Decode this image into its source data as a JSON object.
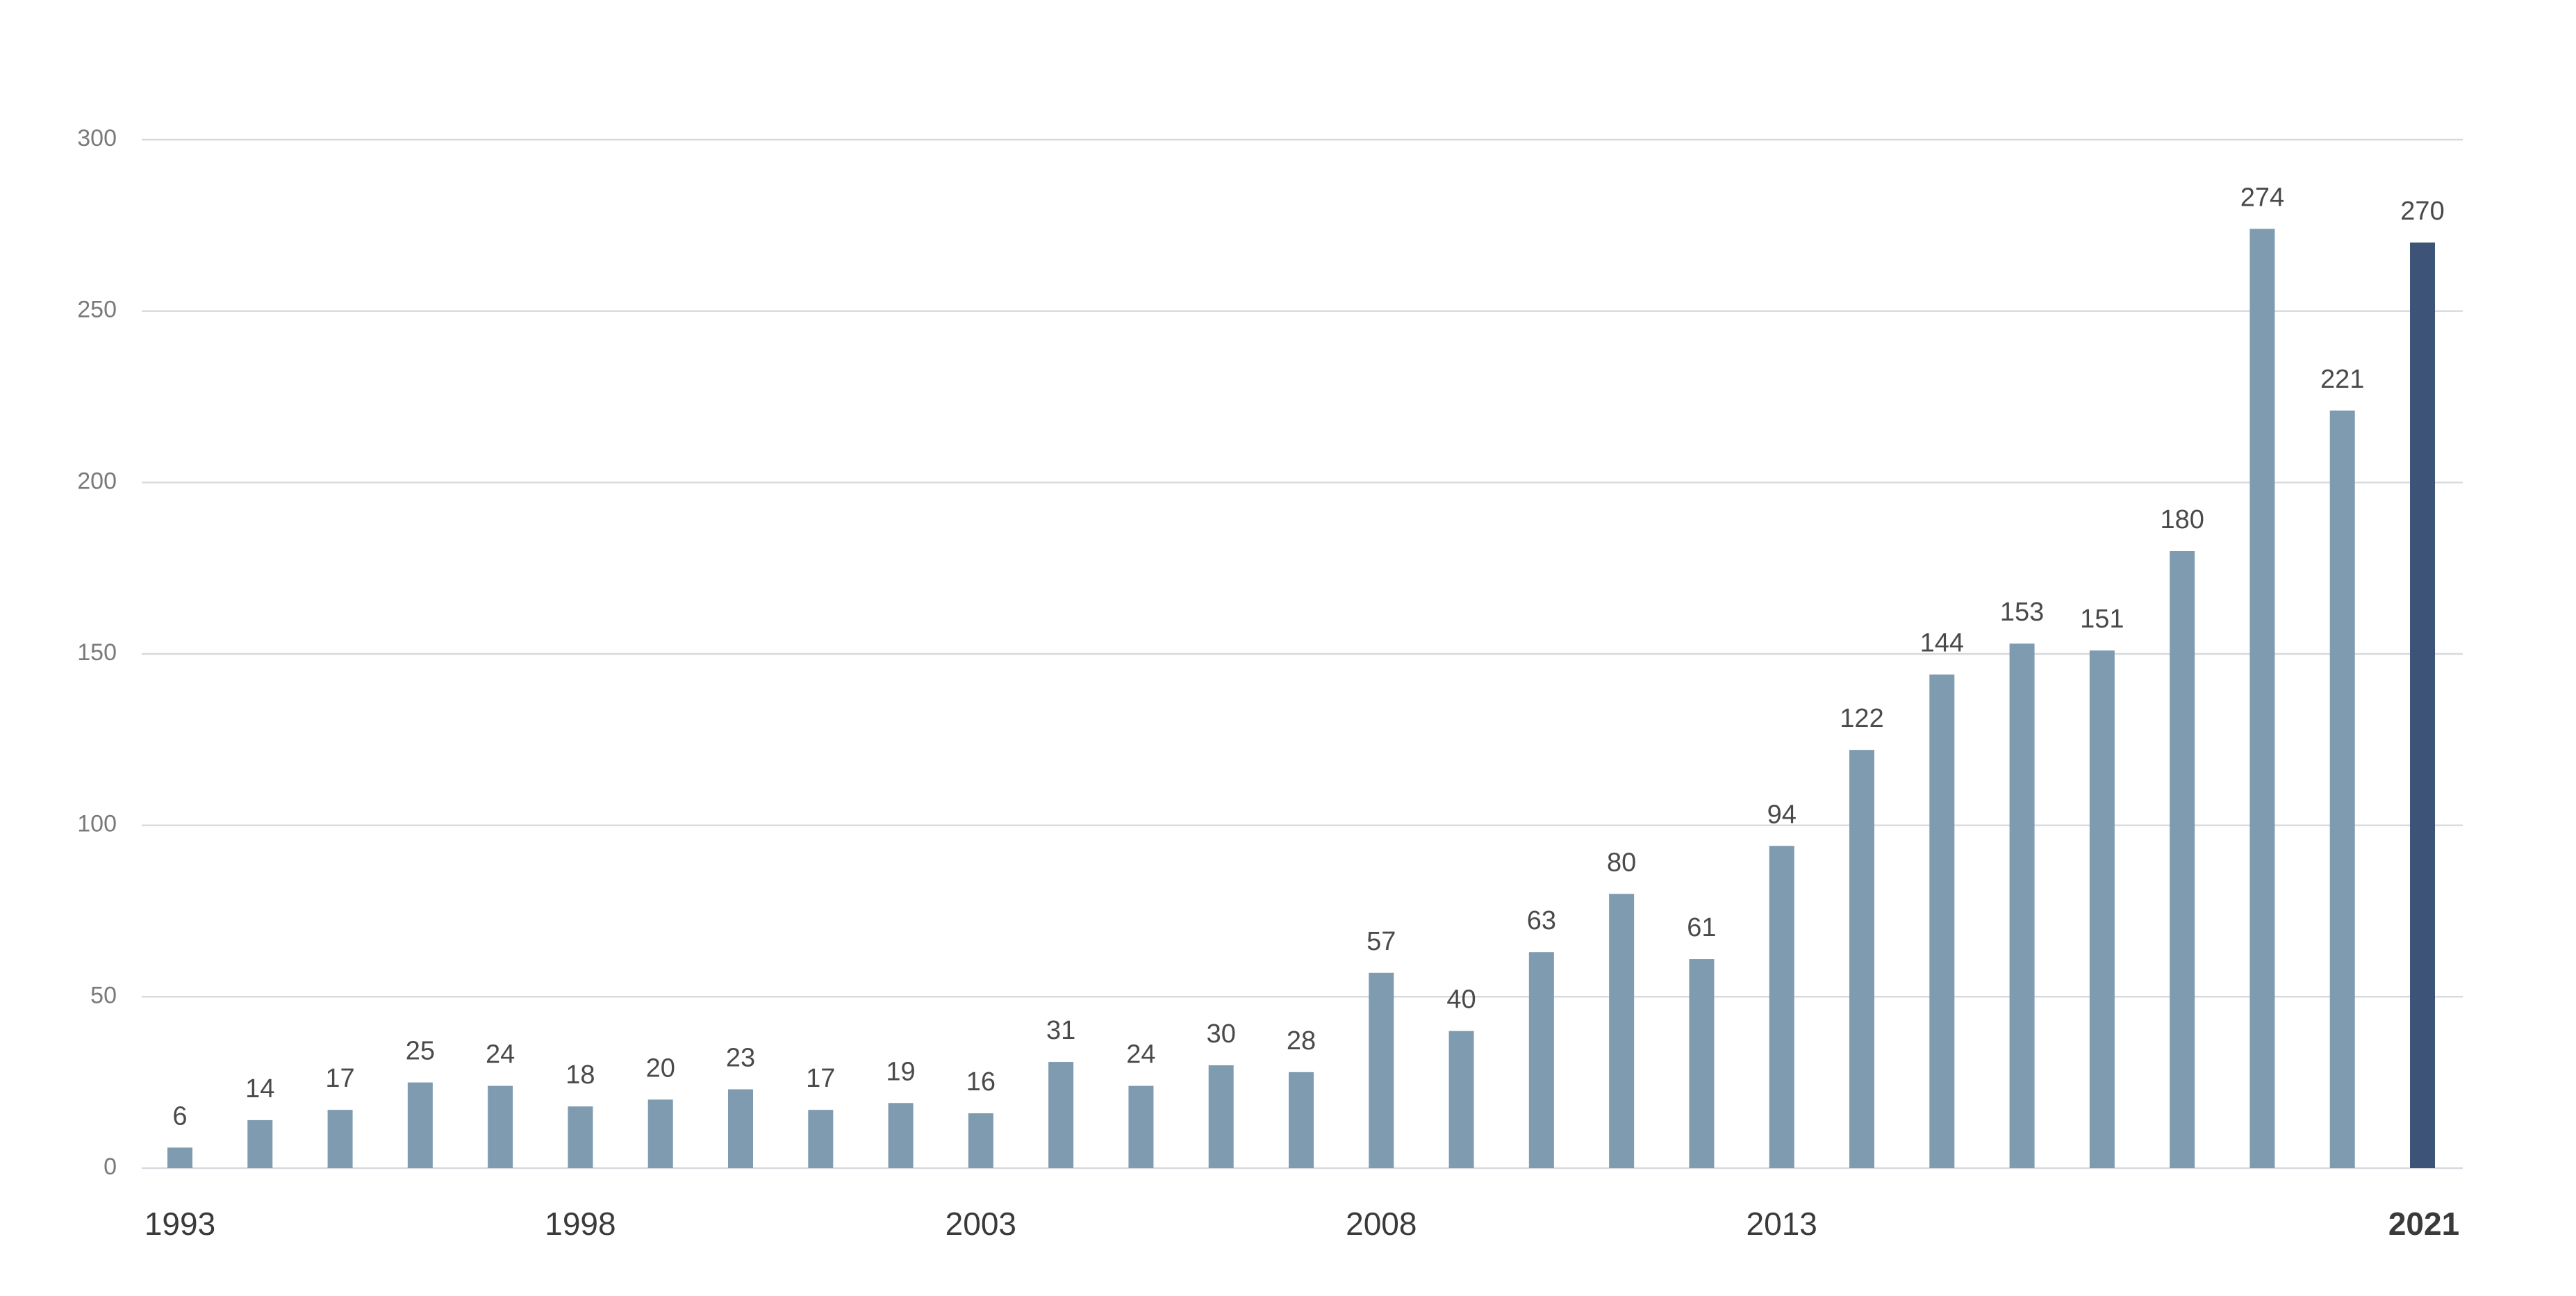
{
  "chart_data": {
    "type": "bar",
    "categories": [
      "1993",
      null,
      null,
      null,
      null,
      "1998",
      null,
      null,
      null,
      null,
      "2003",
      null,
      null,
      null,
      null,
      "2008",
      null,
      null,
      null,
      null,
      "2013",
      null,
      null,
      null,
      null,
      null,
      null,
      null,
      "2021"
    ],
    "values": [
      6,
      14,
      17,
      25,
      24,
      18,
      20,
      23,
      17,
      19,
      16,
      31,
      24,
      30,
      28,
      57,
      40,
      63,
      80,
      61,
      94,
      122,
      144,
      153,
      151,
      180,
      274,
      221,
      270
    ],
    "colors": [
      "#7f9bb0",
      "#7f9bb0",
      "#7f9bb0",
      "#7f9bb0",
      "#7f9bb0",
      "#7f9bb0",
      "#7f9bb0",
      "#7f9bb0",
      "#7f9bb0",
      "#7f9bb0",
      "#7f9bb0",
      "#7f9bb0",
      "#7f9bb0",
      "#7f9bb0",
      "#7f9bb0",
      "#7f9bb0",
      "#7f9bb0",
      "#7f9bb0",
      "#7f9bb0",
      "#7f9bb0",
      "#7f9bb0",
      "#7f9bb0",
      "#7f9bb0",
      "#7f9bb0",
      "#7f9bb0",
      "#7f9bb0",
      "#7f9bb0",
      "#7f9bb0",
      "#3d5478"
    ],
    "ylim": [
      0,
      300
    ],
    "yticks": [
      0,
      50,
      100,
      150,
      200,
      250,
      300
    ],
    "grid": true
  }
}
